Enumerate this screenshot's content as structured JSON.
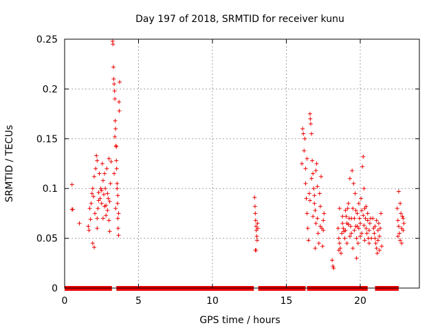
{
  "chart_data": {
    "type": "scatter",
    "title": "Day 197 of 2018, SRMTID for receiver kunu",
    "xlabel": "GPS time / hours",
    "ylabel": "SRMTID / TECUs",
    "xlim": [
      0,
      24
    ],
    "ylim": [
      0,
      0.25
    ],
    "xticks": [
      0,
      5,
      10,
      15,
      20
    ],
    "xtick_labels": [
      "0",
      "5",
      "10",
      "15",
      "20"
    ],
    "yticks": [
      0,
      0.05,
      0.1,
      0.15,
      0.2,
      0.25
    ],
    "ytick_labels": [
      "0",
      "0.05",
      "0.1",
      "0.15",
      "0.2",
      "0.25"
    ],
    "grid": true,
    "marker": "+",
    "marker_color": "#ee0000",
    "zero_segments": [
      [
        0.0,
        1.7
      ],
      [
        1.7,
        3.2
      ],
      [
        3.5,
        12.8
      ],
      [
        13.1,
        16.3
      ],
      [
        16.4,
        20.5
      ],
      [
        21.0,
        22.6
      ]
    ],
    "series": [
      {
        "name": "SRMTID",
        "points": [
          [
            0.5,
            0.104
          ],
          [
            0.5,
            0.079
          ],
          [
            0.55,
            0.079
          ],
          [
            1.0,
            0.065
          ],
          [
            1.6,
            0.062
          ],
          [
            1.65,
            0.058
          ],
          [
            1.7,
            0.08
          ],
          [
            1.75,
            0.069
          ],
          [
            1.8,
            0.085
          ],
          [
            1.85,
            0.095
          ],
          [
            1.9,
            0.045
          ],
          [
            1.9,
            0.1
          ],
          [
            1.95,
            0.092
          ],
          [
            2.0,
            0.112
          ],
          [
            2.0,
            0.041
          ],
          [
            2.05,
            0.075
          ],
          [
            2.1,
            0.12
          ],
          [
            2.15,
            0.133
          ],
          [
            2.2,
            0.128
          ],
          [
            2.2,
            0.06
          ],
          [
            2.25,
            0.08
          ],
          [
            2.3,
            0.096
          ],
          [
            2.35,
            0.115
          ],
          [
            2.4,
            0.09
          ],
          [
            2.45,
            0.1
          ],
          [
            2.5,
            0.085
          ],
          [
            2.55,
            0.125
          ],
          [
            2.6,
            0.07
          ],
          [
            2.65,
            0.094
          ],
          [
            2.7,
            0.115
          ],
          [
            2.75,
            0.1
          ],
          [
            2.8,
            0.083
          ],
          [
            2.85,
            0.12
          ],
          [
            2.9,
            0.078
          ],
          [
            2.95,
            0.09
          ],
          [
            3.0,
            0.068
          ],
          [
            3.0,
            0.13
          ],
          [
            3.05,
            0.057
          ],
          [
            3.1,
            0.105
          ],
          [
            3.15,
            0.127
          ],
          [
            2.3,
            0.088
          ],
          [
            2.5,
            0.098
          ],
          [
            2.7,
            0.082
          ],
          [
            2.9,
            0.095
          ],
          [
            2.2,
            0.07
          ],
          [
            2.6,
            0.108
          ],
          [
            2.8,
            0.073
          ],
          [
            3.05,
            0.087
          ],
          [
            3.25,
            0.248
          ],
          [
            3.27,
            0.245
          ],
          [
            3.3,
            0.222
          ],
          [
            3.32,
            0.21
          ],
          [
            3.35,
            0.205
          ],
          [
            3.38,
            0.198
          ],
          [
            3.4,
            0.19
          ],
          [
            3.42,
            0.168
          ],
          [
            3.45,
            0.16
          ],
          [
            3.47,
            0.143
          ],
          [
            3.5,
            0.142
          ],
          [
            3.52,
            0.12
          ],
          [
            3.55,
            0.1
          ],
          [
            3.58,
            0.085
          ],
          [
            3.6,
            0.07
          ],
          [
            3.62,
            0.06
          ],
          [
            3.65,
            0.053
          ],
          [
            3.68,
            0.187
          ],
          [
            3.7,
            0.178
          ],
          [
            3.72,
            0.207
          ],
          [
            3.4,
            0.152
          ],
          [
            3.5,
            0.128
          ],
          [
            3.6,
            0.093
          ],
          [
            3.35,
            0.115
          ],
          [
            3.45,
            0.08
          ],
          [
            3.55,
            0.105
          ],
          [
            3.65,
            0.075
          ],
          [
            12.85,
            0.091
          ],
          [
            12.88,
            0.082
          ],
          [
            12.9,
            0.075
          ],
          [
            12.92,
            0.068
          ],
          [
            12.95,
            0.062
          ],
          [
            12.97,
            0.058
          ],
          [
            13.0,
            0.052
          ],
          [
            13.02,
            0.048
          ],
          [
            13.05,
            0.065
          ],
          [
            13.07,
            0.06
          ],
          [
            12.9,
            0.038
          ],
          [
            12.95,
            0.038
          ],
          [
            16.1,
            0.16
          ],
          [
            16.15,
            0.155
          ],
          [
            16.2,
            0.138
          ],
          [
            16.25,
            0.15
          ],
          [
            16.3,
            0.12
          ],
          [
            16.3,
            0.105
          ],
          [
            16.35,
            0.09
          ],
          [
            16.4,
            0.075
          ],
          [
            16.45,
            0.06
          ],
          [
            16.5,
            0.048
          ],
          [
            16.55,
            0.095
          ],
          [
            16.6,
            0.175
          ],
          [
            16.62,
            0.17
          ],
          [
            16.65,
            0.165
          ],
          [
            16.7,
            0.155
          ],
          [
            16.75,
            0.128
          ],
          [
            16.8,
            0.115
          ],
          [
            16.85,
            0.1
          ],
          [
            16.9,
            0.085
          ],
          [
            16.95,
            0.078
          ],
          [
            17.0,
            0.065
          ],
          [
            17.05,
            0.125
          ],
          [
            17.1,
            0.07
          ],
          [
            17.15,
            0.055
          ],
          [
            17.2,
            0.045
          ],
          [
            17.25,
            0.095
          ],
          [
            17.3,
            0.082
          ],
          [
            17.35,
            0.112
          ],
          [
            17.4,
            0.06
          ],
          [
            17.45,
            0.042
          ],
          [
            17.5,
            0.068
          ],
          [
            17.55,
            0.075
          ],
          [
            16.7,
            0.11
          ],
          [
            16.9,
            0.093
          ],
          [
            17.1,
            0.102
          ],
          [
            16.6,
            0.088
          ],
          [
            16.8,
            0.072
          ],
          [
            17.0,
            0.118
          ],
          [
            16.05,
            0.125
          ],
          [
            17.3,
            0.062
          ],
          [
            16.4,
            0.13
          ],
          [
            17.5,
            0.058
          ],
          [
            16.95,
            0.04
          ],
          [
            18.1,
            0.028
          ],
          [
            18.15,
            0.022
          ],
          [
            18.2,
            0.02
          ],
          [
            18.5,
            0.06
          ],
          [
            18.55,
            0.05
          ],
          [
            18.6,
            0.045
          ],
          [
            18.65,
            0.04
          ],
          [
            18.7,
            0.035
          ],
          [
            18.75,
            0.055
          ],
          [
            18.8,
            0.065
          ],
          [
            18.85,
            0.06
          ],
          [
            18.9,
            0.057
          ],
          [
            18.95,
            0.05
          ],
          [
            19.0,
            0.078
          ],
          [
            19.05,
            0.072
          ],
          [
            19.1,
            0.065
          ],
          [
            19.15,
            0.08
          ],
          [
            19.2,
            0.085
          ],
          [
            19.25,
            0.07
          ],
          [
            19.3,
            0.11
          ],
          [
            19.35,
            0.062
          ],
          [
            19.4,
            0.055
          ],
          [
            19.45,
            0.118
          ],
          [
            19.5,
            0.08
          ],
          [
            19.55,
            0.105
          ],
          [
            19.6,
            0.07
          ],
          [
            19.65,
            0.095
          ],
          [
            19.7,
            0.062
          ],
          [
            19.75,
            0.05
          ],
          [
            19.8,
            0.075
          ],
          [
            19.85,
            0.045
          ],
          [
            19.9,
            0.085
          ],
          [
            19.95,
            0.07
          ],
          [
            20.0,
            0.065
          ],
          [
            20.05,
            0.09
          ],
          [
            20.1,
            0.078
          ],
          [
            20.15,
            0.122
          ],
          [
            20.2,
            0.132
          ],
          [
            20.25,
            0.1
          ],
          [
            20.3,
            0.08
          ],
          [
            20.35,
            0.07
          ],
          [
            20.4,
            0.06
          ],
          [
            20.45,
            0.055
          ],
          [
            20.5,
            0.075
          ],
          [
            20.55,
            0.05
          ],
          [
            20.6,
            0.045
          ],
          [
            20.65,
            0.065
          ],
          [
            20.7,
            0.07
          ],
          [
            20.75,
            0.05
          ],
          [
            19.1,
            0.045
          ],
          [
            19.3,
            0.052
          ],
          [
            19.5,
            0.04
          ],
          [
            19.7,
            0.078
          ],
          [
            19.9,
            0.06
          ],
          [
            20.1,
            0.055
          ],
          [
            20.3,
            0.048
          ],
          [
            20.5,
            0.068
          ],
          [
            18.6,
            0.08
          ],
          [
            18.8,
            0.072
          ],
          [
            19.0,
            0.058
          ],
          [
            19.2,
            0.064
          ],
          [
            19.4,
            0.07
          ],
          [
            19.6,
            0.058
          ],
          [
            19.8,
            0.062
          ],
          [
            20.0,
            0.052
          ],
          [
            20.2,
            0.073
          ],
          [
            20.4,
            0.082
          ],
          [
            20.6,
            0.058
          ],
          [
            18.55,
            0.038
          ],
          [
            19.75,
            0.03
          ],
          [
            20.25,
            0.063
          ],
          [
            20.85,
            0.07
          ],
          [
            20.9,
            0.06
          ],
          [
            20.95,
            0.055
          ],
          [
            21.0,
            0.05
          ],
          [
            21.05,
            0.045
          ],
          [
            21.1,
            0.04
          ],
          [
            21.15,
            0.035
          ],
          [
            21.2,
            0.058
          ],
          [
            21.25,
            0.065
          ],
          [
            21.3,
            0.052
          ],
          [
            21.35,
            0.06
          ],
          [
            21.4,
            0.075
          ],
          [
            21.45,
            0.042
          ],
          [
            21.1,
            0.068
          ],
          [
            21.2,
            0.048
          ],
          [
            21.3,
            0.038
          ],
          [
            21.0,
            0.062
          ],
          [
            22.5,
            0.08
          ],
          [
            22.55,
            0.068
          ],
          [
            22.6,
            0.062
          ],
          [
            22.65,
            0.055
          ],
          [
            22.7,
            0.048
          ],
          [
            22.75,
            0.075
          ],
          [
            22.8,
            0.06
          ],
          [
            22.85,
            0.072
          ],
          [
            22.9,
            0.058
          ],
          [
            22.95,
            0.065
          ],
          [
            22.6,
            0.097
          ],
          [
            22.7,
            0.085
          ],
          [
            22.8,
            0.045
          ],
          [
            22.55,
            0.052
          ],
          [
            22.9,
            0.07
          ]
        ]
      }
    ]
  }
}
